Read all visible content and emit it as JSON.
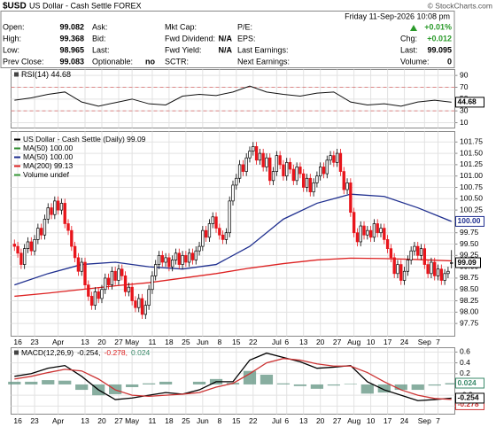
{
  "header": {
    "symbol": "$USD",
    "name": "US Dollar - Cash Settle FOREX",
    "credit": "© StockCharts.com",
    "datetime": "Friday 11-Sep-2026 10:08 pm",
    "columns": [
      [
        {
          "label": "Open:",
          "value": 99.082
        },
        {
          "label": "High:",
          "value": 99.368
        },
        {
          "label": "Low:",
          "value": 98.965
        },
        {
          "label": "Prev Close:",
          "value": 99.083
        }
      ],
      [
        {
          "label": "Ask:"
        },
        {
          "label": "Bid:"
        },
        {
          "label": "Last:"
        },
        {
          "label": "Optionable:",
          "value": "no"
        }
      ],
      [
        {
          "label": "Mkt Cap:"
        },
        {
          "label": "Fwd Dividend:",
          "value": "N/A"
        },
        {
          "label": "Fwd Yield:",
          "value": "N/A"
        },
        {
          "label": "SCTR:"
        }
      ],
      [
        {
          "label": "P/E:"
        },
        {
          "label": "EPS:"
        },
        {
          "label": "Last Earnings:"
        },
        {
          "label": "Next Earnings:"
        }
      ],
      [
        {
          "value": "+0.01%"
        },
        {
          "label": "Chg:",
          "value": "+0.012"
        },
        {
          "label": "Last:",
          "value": 99.095
        },
        {
          "label": "Volume:",
          "value": 0
        }
      ]
    ]
  },
  "chart_data": [
    {
      "type": "line",
      "legend": "RSI(14) 44.68",
      "color": "#111",
      "x": [
        0,
        5,
        10,
        15,
        20,
        25,
        30,
        35,
        40,
        45,
        50,
        55,
        60,
        65,
        70,
        75,
        80,
        85,
        90,
        95,
        100,
        105,
        110,
        115,
        120,
        125,
        130
      ],
      "values": [
        48,
        52,
        58,
        62,
        45,
        38,
        44,
        50,
        42,
        40,
        55,
        58,
        56,
        62,
        72,
        62,
        58,
        55,
        60,
        62,
        45,
        40,
        42,
        38,
        45,
        48,
        44.68
      ],
      "ylim": [
        1,
        100
      ],
      "yticks": [
        90,
        70,
        50,
        30,
        10
      ],
      "overbought": 70,
      "oversold": 30,
      "band_color": "#d88",
      "grid": true
    },
    {
      "type": "candlestick",
      "legend": [
        {
          "text": "US Dollar - Cash Settle (Daily) 99.09",
          "color": "#000"
        },
        {
          "text": "MA(50) 100.00",
          "color": "#2a8a2a"
        },
        {
          "text": "MA(50) 100.00",
          "color": "#1f2f8f"
        },
        {
          "text": "MA(200) 99.13",
          "color": "#d22"
        },
        {
          "text": "Volume undef",
          "color": "#3a9a3a"
        }
      ],
      "up_color": "#000",
      "down_color": "#e8141b",
      "open": [
        99.5,
        99.45,
        99.3,
        99.05,
        99.4,
        99.55,
        99.35,
        99.6,
        99.85,
        99.7,
        100.05,
        100.3,
        100.15,
        100.45,
        100.25,
        100.4,
        99.95,
        99.8,
        99.45,
        99.2,
        98.9,
        99.1,
        98.6,
        98.35,
        98.15,
        98.45,
        98.3,
        98.5,
        98.75,
        98.6,
        98.9,
        98.7,
        98.95,
        98.8,
        98.45,
        98.55,
        98.25,
        98.1,
        98.3,
        97.95,
        98.15,
        98.5,
        98.8,
        99.05,
        99.25,
        99.1,
        99.2,
        99,
        99.15,
        99.3,
        99.05,
        99.25,
        99.1,
        99.3,
        99.15,
        99.35,
        99.45,
        99.8,
        99.65,
        99.95,
        100.1,
        99.85,
        99.7,
        99.6,
        99.75,
        100.45,
        100.8,
        100.95,
        101.25,
        101.1,
        101.4,
        101.55,
        101.65,
        101.35,
        101.5,
        101.2,
        101.4,
        100.9,
        101.1,
        101.45,
        101.25,
        101,
        101.3,
        101.15,
        100.9,
        101.2,
        101.05,
        100.75,
        100.95,
        100.65,
        100.85,
        101,
        101.2,
        101.05,
        101.35,
        101.45,
        101.3,
        101.5,
        101.1,
        100.7,
        100.85,
        100.2,
        99.75,
        99.55,
        99.9,
        99.7,
        99.8,
        99.65,
        99.95,
        99.75,
        99.85,
        99.6,
        99.4,
        99.2,
        98.85,
        99.05,
        98.7,
        98.9,
        99.15,
        99.35,
        99.45,
        99.25,
        99.4,
        99.05,
        98.85,
        99.1,
        98.8,
        98.95,
        98.7,
        98.85,
        99.082
      ],
      "high": [
        99.6,
        99.55,
        99.4,
        99.5,
        99.65,
        99.65,
        99.7,
        99.95,
        99.95,
        100.15,
        100.4,
        100.4,
        100.55,
        100.55,
        100.5,
        100.5,
        100.05,
        99.9,
        99.55,
        99.3,
        99.2,
        99.2,
        98.7,
        98.45,
        98.55,
        98.55,
        98.6,
        98.85,
        98.85,
        99,
        99,
        99.05,
        99.05,
        98.9,
        98.65,
        98.65,
        98.35,
        98.4,
        98.4,
        98.25,
        98.6,
        98.9,
        99.15,
        99.35,
        99.35,
        99.3,
        99.3,
        99.25,
        99.4,
        99.4,
        99.35,
        99.35,
        99.4,
        99.4,
        99.45,
        99.55,
        99.9,
        99.9,
        100.05,
        100.2,
        100.2,
        99.95,
        99.8,
        99.85,
        100.55,
        100.9,
        101.05,
        101.35,
        101.35,
        101.5,
        101.65,
        101.75,
        101.75,
        101.6,
        101.6,
        101.5,
        101.5,
        101.2,
        101.55,
        101.55,
        101.35,
        101.4,
        101.4,
        101.25,
        101.3,
        101.3,
        101.15,
        101.05,
        101.05,
        100.95,
        101.1,
        101.3,
        101.3,
        101.45,
        101.55,
        101.55,
        101.6,
        101.6,
        101.2,
        100.95,
        100.95,
        100.3,
        99.85,
        100,
        100,
        99.9,
        99.9,
        100.05,
        100.05,
        99.95,
        99.95,
        99.7,
        99.5,
        99.3,
        99.15,
        99.15,
        99,
        99.25,
        99.45,
        99.55,
        99.55,
        99.5,
        99.5,
        99.15,
        99.2,
        99.2,
        99.05,
        99.05,
        98.95,
        99,
        99.368
      ],
      "low": [
        99.35,
        99.2,
        98.95,
        98.95,
        99.3,
        99.25,
        99.25,
        99.5,
        99.6,
        99.6,
        99.95,
        100.05,
        100.05,
        100.15,
        100.15,
        99.85,
        99.7,
        99.35,
        99.1,
        98.8,
        98.8,
        98.5,
        98.25,
        98.05,
        98.05,
        98.2,
        98.2,
        98.4,
        98.5,
        98.5,
        98.6,
        98.6,
        98.7,
        98.35,
        98.35,
        98.15,
        98,
        98,
        97.85,
        97.85,
        98.05,
        98.4,
        98.7,
        98.95,
        99,
        99,
        98.9,
        98.9,
        99.05,
        98.95,
        98.95,
        99,
        99,
        99.05,
        99.05,
        99.25,
        99.35,
        99.55,
        99.55,
        99.85,
        99.75,
        99.6,
        99.5,
        99.5,
        99.65,
        100.35,
        100.7,
        100.85,
        101,
        101,
        101.3,
        101.45,
        101.25,
        101.25,
        101.1,
        101.1,
        100.8,
        100.8,
        101,
        101.15,
        100.9,
        100.9,
        101.05,
        100.8,
        100.8,
        100.95,
        100.65,
        100.65,
        100.55,
        100.55,
        100.75,
        100.9,
        100.95,
        100.95,
        101.25,
        101.2,
        101.2,
        101,
        100.6,
        100.6,
        100.1,
        99.65,
        99.45,
        99.45,
        99.6,
        99.6,
        99.55,
        99.55,
        99.65,
        99.65,
        99.5,
        99.3,
        99.1,
        98.75,
        98.75,
        98.6,
        98.6,
        98.8,
        99.05,
        99.25,
        99.15,
        99.15,
        98.95,
        98.75,
        98.75,
        98.7,
        98.7,
        98.6,
        98.6,
        98.75,
        98.965
      ],
      "close": [
        99.45,
        99.3,
        99.05,
        99.4,
        99.55,
        99.35,
        99.6,
        99.85,
        99.7,
        100.05,
        100.3,
        100.15,
        100.45,
        100.25,
        100.4,
        99.95,
        99.8,
        99.45,
        99.2,
        98.9,
        99.1,
        98.6,
        98.35,
        98.15,
        98.45,
        98.3,
        98.5,
        98.75,
        98.6,
        98.9,
        98.7,
        98.95,
        98.8,
        98.45,
        98.55,
        98.25,
        98.1,
        98.3,
        97.95,
        98.15,
        98.5,
        98.8,
        99.05,
        99.25,
        99.1,
        99.2,
        99,
        99.15,
        99.3,
        99.05,
        99.25,
        99.1,
        99.3,
        99.15,
        99.35,
        99.45,
        99.8,
        99.65,
        99.95,
        100.1,
        99.85,
        99.7,
        99.6,
        99.75,
        100.45,
        100.8,
        100.95,
        101.25,
        101.1,
        101.4,
        101.55,
        101.65,
        101.35,
        101.5,
        101.2,
        101.4,
        100.9,
        101.1,
        101.45,
        101.25,
        101,
        101.3,
        101.15,
        100.9,
        101.2,
        101.05,
        100.75,
        100.95,
        100.65,
        100.85,
        101,
        101.2,
        101.05,
        101.35,
        101.45,
        101.3,
        101.5,
        101.1,
        100.7,
        100.85,
        100.2,
        99.75,
        99.55,
        99.9,
        99.7,
        99.8,
        99.65,
        99.95,
        99.75,
        99.85,
        99.6,
        99.4,
        99.2,
        98.85,
        99.05,
        98.7,
        98.9,
        99.15,
        99.35,
        99.45,
        99.25,
        99.4,
        99.05,
        98.85,
        99.1,
        98.8,
        98.95,
        98.7,
        98.85,
        98.9,
        99.09
      ],
      "overlays": [
        {
          "color": "#1f2f8f",
          "x": [
            0,
            10,
            20,
            30,
            40,
            50,
            60,
            70,
            80,
            90,
            100,
            110,
            120,
            130
          ],
          "values": [
            98.6,
            98.85,
            99.05,
            99.1,
            99,
            98.95,
            99.05,
            99.45,
            100.05,
            100.4,
            100.6,
            100.55,
            100.3,
            100
          ],
          "last_label": "100.00"
        },
        {
          "color": "#d22",
          "x": [
            0,
            10,
            20,
            30,
            40,
            50,
            60,
            70,
            80,
            90,
            100,
            110,
            120,
            130
          ],
          "values": [
            98.35,
            98.42,
            98.5,
            98.58,
            98.65,
            98.75,
            98.85,
            98.97,
            99.07,
            99.15,
            99.19,
            99.18,
            99.16,
            99.13
          ]
        }
      ],
      "ylim": [
        97.47,
        101.98
      ],
      "yticks": [
        101.75,
        {
          "value": 101.5,
          "label": "101.50"
        },
        101.25,
        {
          "value": 101,
          "label": "101.00"
        },
        100.75,
        {
          "value": 100.5,
          "label": "100.50"
        },
        100.25,
        {
          "value": 100,
          "label": "100.00"
        },
        99.75,
        {
          "value": 99.5,
          "label": "99.50"
        },
        99.25,
        {
          "value": 99,
          "label": "99.00"
        },
        98.75,
        {
          "value": 98.5,
          "label": "98.50"
        },
        98.25,
        {
          "value": 98,
          "label": "98.00"
        },
        97.75
      ],
      "xticks": [
        {
          "value": 1,
          "label": "16"
        },
        {
          "value": 6,
          "label": "23"
        },
        {
          "value": 13,
          "label": "Apr"
        },
        {
          "value": 21,
          "label": "13"
        },
        {
          "value": 26,
          "label": "20"
        },
        {
          "value": 31,
          "label": "27"
        },
        {
          "value": 35,
          "label": "May"
        },
        {
          "value": 41,
          "label": "11"
        },
        {
          "value": 46,
          "label": "18"
        },
        {
          "value": 51,
          "label": "25"
        },
        {
          "value": 56,
          "label": "Jun"
        },
        {
          "value": 61,
          "label": "8"
        },
        {
          "value": 66,
          "label": "15"
        },
        {
          "value": 71,
          "label": "22"
        },
        {
          "value": 78,
          "label": "Jul"
        },
        {
          "value": 81,
          "label": "6"
        },
        {
          "value": 86,
          "label": "13"
        },
        {
          "value": 91,
          "label": "20"
        },
        {
          "value": 96,
          "label": "27"
        },
        {
          "value": 101,
          "label": "Aug"
        },
        {
          "value": 106,
          "label": "10"
        },
        {
          "value": 111,
          "label": "17"
        },
        {
          "value": 116,
          "label": "24"
        },
        {
          "value": 122,
          "label": "Sep"
        },
        {
          "value": 126,
          "label": "7"
        }
      ],
      "grid": true
    },
    {
      "type": "macd",
      "legend": [
        {
          "text": "MACD(12,26,9)",
          "color": "#000"
        },
        {
          "text": "-0.254,",
          "color": "#000"
        },
        {
          "text": "-0.278,",
          "color": "#d22"
        },
        {
          "text": "0.024",
          "color": "#3a8a6a"
        }
      ],
      "x": [
        0,
        5,
        10,
        15,
        20,
        25,
        30,
        35,
        40,
        45,
        50,
        55,
        60,
        65,
        70,
        75,
        80,
        85,
        90,
        95,
        100,
        105,
        110,
        115,
        120,
        125,
        130
      ],
      "series": [
        {
          "color": "#000",
          "values": [
            0.15,
            0.2,
            0.3,
            0.35,
            0.15,
            -0.1,
            -0.28,
            -0.25,
            -0.2,
            -0.15,
            -0.18,
            -0.1,
            0.05,
            0.05,
            0.45,
            0.58,
            0.5,
            0.42,
            0.3,
            0.32,
            0.35,
            0.05,
            -0.1,
            -0.2,
            -0.3,
            -0.28,
            -0.254
          ]
        },
        {
          "color": "#c33",
          "values": [
            0.1,
            0.15,
            0.22,
            0.28,
            0.25,
            0.1,
            -0.1,
            -0.2,
            -0.22,
            -0.2,
            -0.18,
            -0.15,
            -0.05,
            0.02,
            0.2,
            0.4,
            0.48,
            0.45,
            0.38,
            0.34,
            0.34,
            0.22,
            0.05,
            -0.1,
            -0.2,
            -0.26,
            -0.278
          ]
        }
      ],
      "histogram": {
        "color": "#6a9a88",
        "values": [
          0.05,
          0.05,
          0.08,
          0.07,
          -0.1,
          -0.2,
          -0.18,
          -0.05,
          0.02,
          0.05,
          0,
          0.05,
          0.1,
          0.03,
          0.25,
          0.18,
          0.02,
          -0.03,
          -0.08,
          -0.02,
          0.01,
          -0.17,
          -0.15,
          -0.1,
          -0.1,
          -0.02,
          0.024
        ]
      },
      "ylim": [
        -0.55,
        0.68
      ],
      "yticks": [
        0.6,
        0.4,
        0.2,
        -0.2,
        -0.4
      ],
      "grid": true
    }
  ]
}
